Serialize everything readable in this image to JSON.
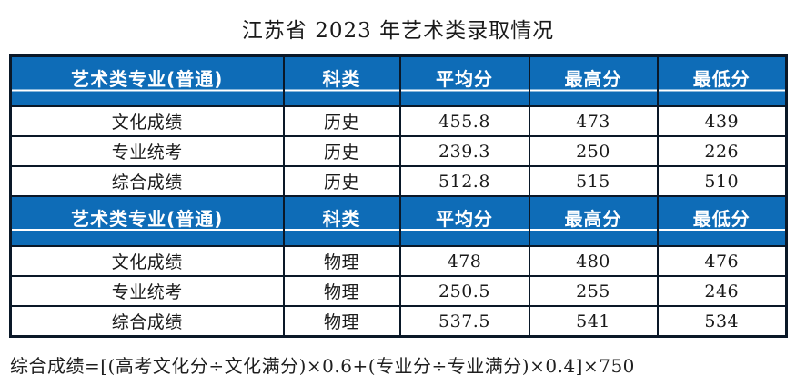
{
  "title": "江苏省 2023 年艺术类录取情况",
  "table": {
    "columns": [
      "艺术类专业(普通)",
      "科类",
      "平均分",
      "最高分",
      "最低分"
    ],
    "sections": [
      {
        "header": [
          "艺术类专业(普通)",
          "科类",
          "平均分",
          "最高分",
          "最低分"
        ],
        "rows": [
          [
            "文化成绩",
            "历史",
            "455.8",
            "473",
            "439"
          ],
          [
            "专业统考",
            "历史",
            "239.3",
            "250",
            "226"
          ],
          [
            "综合成绩",
            "历史",
            "512.8",
            "515",
            "510"
          ]
        ]
      },
      {
        "header": [
          "艺术类专业(普通)",
          "科类",
          "平均分",
          "最高分",
          "最低分"
        ],
        "rows": [
          [
            "文化成绩",
            "物理",
            "478",
            "480",
            "476"
          ],
          [
            "专业统考",
            "物理",
            "250.5",
            "255",
            "246"
          ],
          [
            "综合成绩",
            "物理",
            "537.5",
            "541",
            "534"
          ]
        ]
      }
    ]
  },
  "footnote": "综合成绩=[(高考文化分÷文化满分)×0.6+(专业分÷专业满分)×0.4]×750",
  "chart_data": {
    "type": "table",
    "title": "江苏省 2023 年艺术类录取情况",
    "columns": [
      "艺术类专业(普通)",
      "科类",
      "平均分",
      "最高分",
      "最低分"
    ],
    "rows": [
      [
        "文化成绩",
        "历史",
        455.8,
        473,
        439
      ],
      [
        "专业统考",
        "历史",
        239.3,
        250,
        226
      ],
      [
        "综合成绩",
        "历史",
        512.8,
        515,
        510
      ],
      [
        "文化成绩",
        "物理",
        478,
        480,
        476
      ],
      [
        "专业统考",
        "物理",
        250.5,
        255,
        246
      ],
      [
        "综合成绩",
        "物理",
        537.5,
        541,
        534
      ]
    ],
    "note": "综合成绩=[(高考文化分÷文化满分)×0.6+(专业分÷专业满分)×0.4]×750"
  },
  "colors": {
    "header_bg": "#0e6cb7",
    "header_text": "#ffffff",
    "border": "#0a1828",
    "body_text": "#1a1a1a",
    "page_bg": "#ffffff"
  }
}
